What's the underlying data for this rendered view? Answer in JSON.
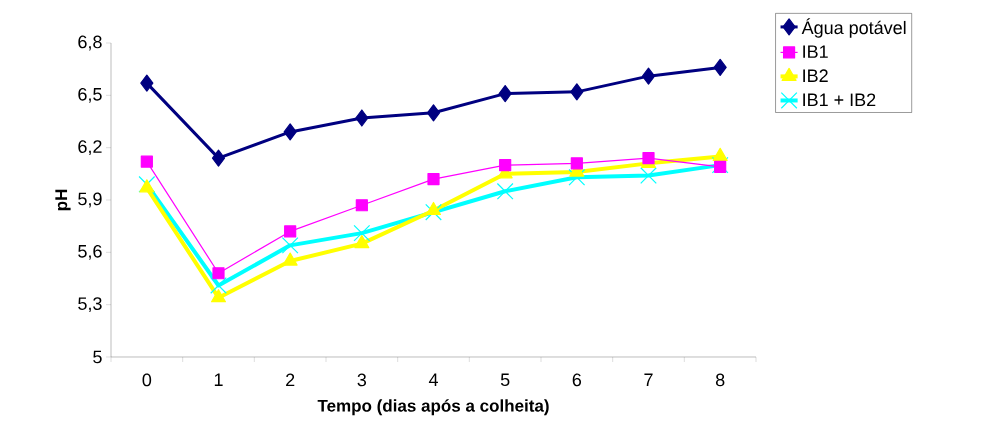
{
  "chart_data": {
    "type": "line",
    "xlabel": "Tempo (dias após a colheita)",
    "ylabel": "pH",
    "categories": [
      "0",
      "1",
      "2",
      "3",
      "4",
      "5",
      "6",
      "7",
      "8"
    ],
    "series": [
      {
        "name": "Água potável",
        "color": "#000080",
        "marker": "diamond",
        "values": [
          6.57,
          6.14,
          6.29,
          6.37,
          6.4,
          6.51,
          6.52,
          6.61,
          6.66
        ]
      },
      {
        "name": "IB1",
        "color": "#ff00ff",
        "marker": "square",
        "values": [
          6.12,
          5.48,
          5.72,
          5.87,
          6.02,
          6.1,
          6.11,
          6.14,
          6.09
        ]
      },
      {
        "name": "IB2",
        "color": "#ffff00",
        "marker": "triangle",
        "values": [
          5.97,
          5.34,
          5.55,
          5.65,
          5.84,
          6.05,
          6.06,
          6.11,
          6.15
        ]
      },
      {
        "name": "IB1 + IB2",
        "color": "#00ffff",
        "marker": "cross",
        "values": [
          5.99,
          5.41,
          5.64,
          5.71,
          5.83,
          5.95,
          6.03,
          6.04,
          6.1
        ]
      }
    ],
    "ylim": [
      5,
      6.8
    ],
    "yticks": [
      {
        "value": 5,
        "label": "5"
      },
      {
        "value": 5.3,
        "label": "5,3"
      },
      {
        "value": 5.6,
        "label": "5,6"
      },
      {
        "value": 5.9,
        "label": "5,9"
      },
      {
        "value": 6.2,
        "label": "6,2"
      },
      {
        "value": 6.5,
        "label": "6,5"
      },
      {
        "value": 6.8,
        "label": "6,8"
      }
    ],
    "grid": false,
    "legend": "top right",
    "line_style": "solid"
  }
}
